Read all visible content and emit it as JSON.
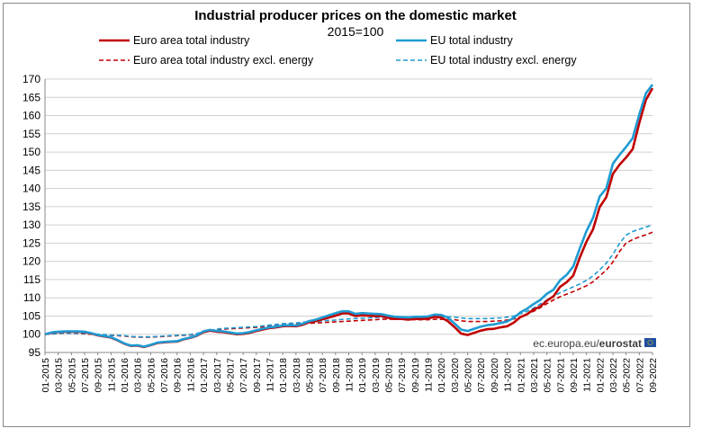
{
  "chart_data": {
    "type": "line",
    "title": "Industrial producer prices on the domestic market",
    "subtitle": "2015=100",
    "source": {
      "prefix": "ec.europa.eu/",
      "brand": "eurostat"
    },
    "ylim": [
      95,
      170
    ],
    "yticks": [
      95,
      100,
      105,
      110,
      115,
      120,
      125,
      130,
      135,
      140,
      145,
      150,
      155,
      160,
      165,
      170
    ],
    "grid": true,
    "legend_position": "top",
    "x": [
      "01-2015",
      "02-2015",
      "03-2015",
      "04-2015",
      "05-2015",
      "06-2015",
      "07-2015",
      "08-2015",
      "09-2015",
      "10-2015",
      "11-2015",
      "12-2015",
      "01-2016",
      "02-2016",
      "03-2016",
      "04-2016",
      "05-2016",
      "06-2016",
      "07-2016",
      "08-2016",
      "09-2016",
      "10-2016",
      "11-2016",
      "12-2016",
      "01-2017",
      "02-2017",
      "03-2017",
      "04-2017",
      "05-2017",
      "06-2017",
      "07-2017",
      "08-2017",
      "09-2017",
      "10-2017",
      "11-2017",
      "12-2017",
      "01-2018",
      "02-2018",
      "03-2018",
      "04-2018",
      "05-2018",
      "06-2018",
      "07-2018",
      "08-2018",
      "09-2018",
      "10-2018",
      "11-2018",
      "12-2018",
      "01-2019",
      "02-2019",
      "03-2019",
      "04-2019",
      "05-2019",
      "06-2019",
      "07-2019",
      "08-2019",
      "09-2019",
      "10-2019",
      "11-2019",
      "12-2019",
      "01-2020",
      "02-2020",
      "03-2020",
      "04-2020",
      "05-2020",
      "06-2020",
      "07-2020",
      "08-2020",
      "09-2020",
      "10-2020",
      "11-2020",
      "12-2020",
      "01-2021",
      "02-2021",
      "03-2021",
      "04-2021",
      "05-2021",
      "06-2021",
      "07-2021",
      "08-2021",
      "09-2021",
      "10-2021",
      "11-2021",
      "12-2021",
      "01-2022",
      "02-2022",
      "03-2022",
      "04-2022",
      "05-2022",
      "06-2022",
      "07-2022",
      "08-2022",
      "09-2022"
    ],
    "xtick_labels": [
      "01-2015",
      "03-2015",
      "05-2015",
      "07-2015",
      "09-2015",
      "11-2015",
      "01-2016",
      "03-2016",
      "05-2016",
      "07-2016",
      "09-2016",
      "11-2016",
      "01-2017",
      "03-2017",
      "05-2017",
      "07-2017",
      "09-2017",
      "11-2017",
      "01-2018",
      "03-2018",
      "05-2018",
      "07-2018",
      "09-2018",
      "11-2018",
      "01-2019",
      "03-2019",
      "05-2019",
      "07-2019",
      "09-2019",
      "11-2019",
      "01-2020",
      "03-2020",
      "05-2020",
      "07-2020",
      "09-2020",
      "11-2020",
      "01-2021",
      "03-2021",
      "05-2021",
      "07-2021",
      "09-2021",
      "11-2021",
      "01-2022",
      "03-2022",
      "05-2022",
      "07-2022",
      "09-2022"
    ],
    "series": [
      {
        "name": "Euro area total industry",
        "color": "#c00000",
        "dash": false,
        "values": [
          100.0,
          100.4,
          100.6,
          100.7,
          100.7,
          100.7,
          100.6,
          100.2,
          99.7,
          99.4,
          99.1,
          98.3,
          97.4,
          96.8,
          96.9,
          96.5,
          97.0,
          97.6,
          97.8,
          97.9,
          98.0,
          98.6,
          99.0,
          99.6,
          100.6,
          101.0,
          100.7,
          100.6,
          100.3,
          100.0,
          100.1,
          100.4,
          100.9,
          101.3,
          101.7,
          101.9,
          102.2,
          102.3,
          102.2,
          102.6,
          103.3,
          103.6,
          104.1,
          104.6,
          105.1,
          105.7,
          105.7,
          105.0,
          105.2,
          105.1,
          105.0,
          105.0,
          104.5,
          104.2,
          104.2,
          104.0,
          104.2,
          104.2,
          104.3,
          104.8,
          104.6,
          103.6,
          102.0,
          100.2,
          99.8,
          100.4,
          101.0,
          101.4,
          101.5,
          101.9,
          102.2,
          103.2,
          104.7,
          105.5,
          106.8,
          107.6,
          109.2,
          110.4,
          113.0,
          114.3,
          116.1,
          121.1,
          125.4,
          128.8,
          134.9,
          137.6,
          144.0,
          146.5,
          148.5,
          150.8,
          158.0,
          164.3,
          167.5
        ]
      },
      {
        "name": "EU total industry",
        "color": "#1f9bd2",
        "dash": false,
        "values": [
          100.0,
          100.5,
          100.7,
          100.8,
          100.8,
          100.8,
          100.7,
          100.3,
          99.8,
          99.5,
          99.2,
          98.4,
          97.5,
          96.9,
          97.0,
          96.6,
          97.1,
          97.7,
          97.9,
          98.0,
          98.1,
          98.7,
          99.1,
          99.7,
          100.8,
          101.2,
          100.9,
          100.8,
          100.5,
          100.2,
          100.3,
          100.6,
          101.1,
          101.5,
          101.9,
          102.1,
          102.4,
          102.5,
          102.4,
          102.9,
          103.6,
          104.0,
          104.6,
          105.2,
          105.8,
          106.3,
          106.3,
          105.6,
          105.8,
          105.7,
          105.6,
          105.5,
          105.1,
          104.8,
          104.7,
          104.6,
          104.8,
          104.8,
          104.9,
          105.4,
          105.3,
          104.6,
          103.0,
          101.3,
          100.9,
          101.5,
          102.1,
          102.5,
          102.7,
          103.1,
          103.5,
          104.5,
          106.0,
          107.0,
          108.3,
          109.4,
          111.1,
          112.2,
          114.8,
          116.3,
          118.6,
          123.6,
          128.3,
          132.0,
          137.8,
          140.0,
          146.8,
          149.2,
          151.4,
          153.8,
          160.3,
          166.1,
          168.5
        ]
      },
      {
        "name": "Euro area total industry excl. energy",
        "color": "#c00000",
        "dash": true,
        "values": [
          100.0,
          100.1,
          100.2,
          100.3,
          100.3,
          100.2,
          100.1,
          100.0,
          99.9,
          99.8,
          99.7,
          99.6,
          99.5,
          99.3,
          99.2,
          99.2,
          99.2,
          99.3,
          99.4,
          99.5,
          99.6,
          99.7,
          99.8,
          100.1,
          100.6,
          101.0,
          101.2,
          101.4,
          101.5,
          101.6,
          101.7,
          101.8,
          101.9,
          102.0,
          102.2,
          102.4,
          102.6,
          102.7,
          102.8,
          102.9,
          103.0,
          103.1,
          103.2,
          103.3,
          103.4,
          103.5,
          103.6,
          103.7,
          103.8,
          103.9,
          104.0,
          104.1,
          104.1,
          104.1,
          104.1,
          104.1,
          104.0,
          104.0,
          104.0,
          104.1,
          104.1,
          104.1,
          104.0,
          103.7,
          103.5,
          103.5,
          103.5,
          103.5,
          103.6,
          103.7,
          103.9,
          104.2,
          104.8,
          105.5,
          106.3,
          107.3,
          108.4,
          109.4,
          110.3,
          111.0,
          111.7,
          112.5,
          113.3,
          114.4,
          116.0,
          117.6,
          119.8,
          122.7,
          125.0,
          126.0,
          126.7,
          127.3,
          128.0
        ]
      },
      {
        "name": "EU total industry excl. energy",
        "color": "#1f9bd2",
        "dash": true,
        "values": [
          100.0,
          100.1,
          100.2,
          100.3,
          100.3,
          100.3,
          100.2,
          100.1,
          100.0,
          99.9,
          99.8,
          99.7,
          99.6,
          99.4,
          99.3,
          99.3,
          99.3,
          99.4,
          99.5,
          99.6,
          99.7,
          99.8,
          99.9,
          100.2,
          100.7,
          101.1,
          101.4,
          101.6,
          101.7,
          101.8,
          101.9,
          102.0,
          102.1,
          102.3,
          102.5,
          102.7,
          102.9,
          103.0,
          103.1,
          103.3,
          103.4,
          103.5,
          103.7,
          103.8,
          103.9,
          104.1,
          104.2,
          104.3,
          104.4,
          104.5,
          104.6,
          104.6,
          104.6,
          104.6,
          104.6,
          104.6,
          104.6,
          104.6,
          104.6,
          104.7,
          104.8,
          104.8,
          104.7,
          104.5,
          104.3,
          104.3,
          104.3,
          104.3,
          104.4,
          104.5,
          104.7,
          105.0,
          105.6,
          106.3,
          107.2,
          108.3,
          109.4,
          110.5,
          111.4,
          112.2,
          113.0,
          113.8,
          114.8,
          116.0,
          117.7,
          119.5,
          121.9,
          124.9,
          127.2,
          128.2,
          128.8,
          129.4,
          130.0
        ]
      }
    ]
  }
}
